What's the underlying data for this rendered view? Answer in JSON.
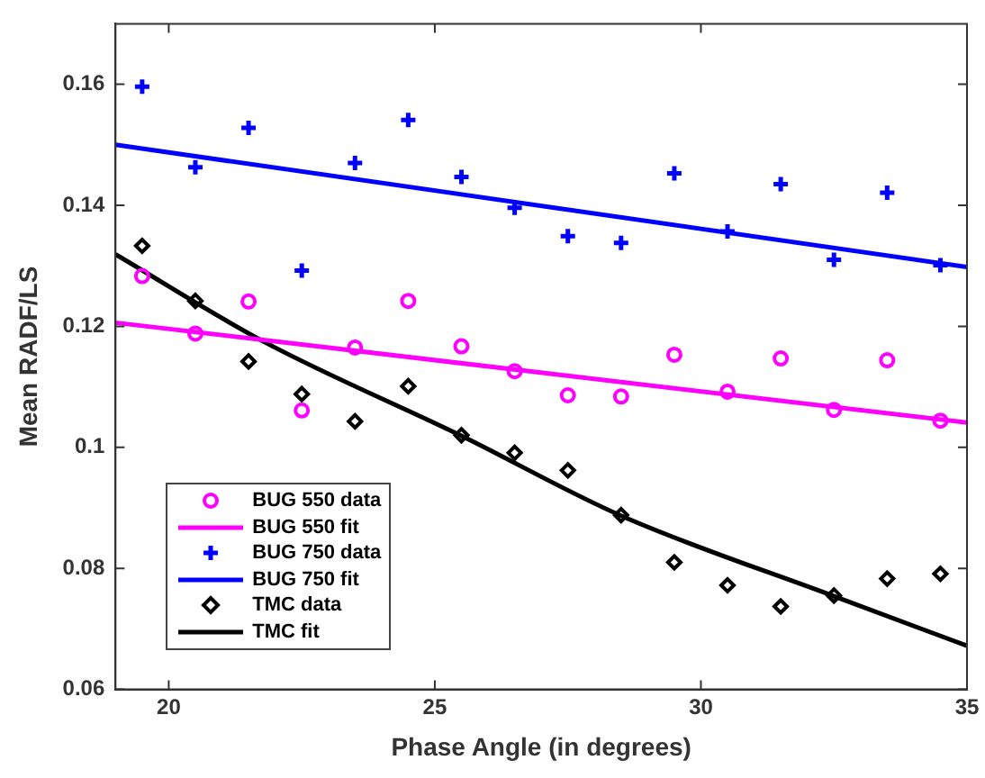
{
  "chart_data": {
    "type": "scatter",
    "xlabel": "Phase Angle (in degrees)",
    "ylabel": "Mean RADF/LS",
    "xlim": [
      19,
      35
    ],
    "xticks": [
      20,
      25,
      30,
      35
    ],
    "ylim": [
      0.06,
      0.17
    ],
    "yticks": [
      0.06,
      0.08,
      0.1,
      0.12,
      0.14,
      0.16
    ],
    "grid": false,
    "legend": "bottom left",
    "x": [
      19.5,
      20.5,
      21.5,
      22.5,
      23.5,
      24.5,
      25.5,
      26.5,
      27.5,
      28.5,
      29.5,
      30.5,
      31.5,
      32.5,
      33.5,
      34.5
    ],
    "series": [
      {
        "name": "BUG 550 data",
        "marker": "circle",
        "color": "#ff00ff",
        "values": [
          0.1283,
          0.1188,
          0.1241,
          0.1061,
          0.1165,
          0.1242,
          0.1167,
          0.1126,
          0.1086,
          0.1084,
          0.1153,
          0.1092,
          0.1147,
          0.1062,
          0.1144,
          0.1044
        ]
      },
      {
        "name": "BUG 550 fit",
        "type": "line",
        "marker": "none",
        "line_style": "solid",
        "color": "#ff00ff",
        "x": [
          19,
          35
        ],
        "values": [
          0.1206,
          0.1041
        ]
      },
      {
        "name": "BUG 750 data",
        "marker": "cross",
        "color": "#0000ff",
        "values": [
          0.1596,
          0.1463,
          0.1528,
          0.1292,
          0.147,
          0.1541,
          0.1447,
          0.1396,
          0.1349,
          0.1338,
          0.1453,
          0.1357,
          0.1435,
          0.131,
          0.1421,
          0.1301
        ]
      },
      {
        "name": "BUG 750 fit",
        "type": "line",
        "marker": "none",
        "line_style": "solid",
        "color": "#0000ff",
        "x": [
          19,
          35
        ],
        "values": [
          0.15,
          0.1298
        ]
      },
      {
        "name": "TMC data",
        "marker": "diamond",
        "color": "#000000",
        "values": [
          0.1333,
          0.1242,
          0.1142,
          0.1088,
          0.1043,
          0.1101,
          0.102,
          0.0991,
          0.0962,
          0.0888,
          0.081,
          0.0772,
          0.0737,
          0.0755,
          0.0783,
          0.0791
        ]
      },
      {
        "name": "TMC fit",
        "type": "line",
        "marker": "none",
        "line_style": "solid",
        "color": "#000000",
        "x": [
          19,
          21.8,
          25.5,
          28.5,
          32.5,
          35
        ],
        "values": [
          0.1319,
          0.1174,
          0.1019,
          0.0887,
          0.0754,
          0.0672
        ]
      }
    ]
  }
}
